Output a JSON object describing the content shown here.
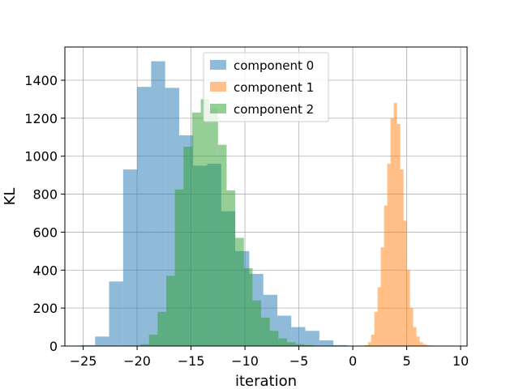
{
  "chart_data": {
    "type": "bar",
    "title": "",
    "xlabel": "iteration",
    "ylabel": "KL",
    "xlim": [
      -26.7,
      10.6
    ],
    "ylim": [
      0,
      1575
    ],
    "xticks": [
      -25,
      -20,
      -15,
      -10,
      -5,
      0,
      5,
      10
    ],
    "xtick_labels": [
      "−25",
      "−20",
      "−15",
      "−10",
      "−5",
      "0",
      "5",
      "10"
    ],
    "yticks": [
      0,
      200,
      400,
      600,
      800,
      1000,
      1200,
      1400
    ],
    "ytick_labels": [
      "0",
      "200",
      "400",
      "600",
      "800",
      "1000",
      "1200",
      "1400"
    ],
    "grid": true,
    "legend_position": "top-center",
    "bar_opacity": 0.5,
    "series": [
      {
        "name": "component 0",
        "color": "#1f77b4",
        "bin_edges": [
          -25.2,
          -23.9,
          -22.6,
          -21.3,
          -20.0,
          -18.7,
          -17.4,
          -16.1,
          -14.8,
          -13.5,
          -12.2,
          -10.9,
          -9.6,
          -8.3,
          -7.0,
          -5.7,
          -4.4,
          -3.1,
          -1.8,
          -0.5
        ],
        "counts": [
          5,
          50,
          340,
          930,
          1365,
          1500,
          1360,
          1110,
          950,
          960,
          710,
          500,
          380,
          270,
          160,
          100,
          80,
          30,
          5
        ]
      },
      {
        "name": "component 1",
        "color": "#ff7f0e",
        "bin_edges": [
          1.1,
          1.4,
          1.7,
          2.0,
          2.3,
          2.6,
          2.9,
          3.2,
          3.5,
          3.8,
          4.1,
          4.4,
          4.7,
          5.0,
          5.3,
          5.6,
          5.9,
          6.2,
          6.5,
          6.8,
          7.1,
          7.4,
          7.7,
          8.0
        ],
        "counts": [
          5,
          20,
          60,
          180,
          310,
          520,
          740,
          960,
          1200,
          1280,
          1170,
          930,
          660,
          400,
          200,
          100,
          50,
          20,
          10,
          5,
          3,
          2,
          1
        ]
      },
      {
        "name": "component 2",
        "color": "#2ca02c",
        "bin_edges": [
          -19.7,
          -18.9,
          -18.1,
          -17.3,
          -16.5,
          -15.7,
          -14.9,
          -14.1,
          -13.3,
          -12.5,
          -11.7,
          -10.9,
          -10.1,
          -9.3,
          -8.5,
          -7.7,
          -6.9,
          -6.1,
          -5.3,
          -4.5,
          -3.7,
          -2.9
        ],
        "counts": [
          10,
          60,
          180,
          370,
          825,
          1050,
          1230,
          1300,
          1250,
          1060,
          820,
          570,
          410,
          240,
          150,
          80,
          40,
          20,
          10,
          5,
          2
        ]
      }
    ]
  }
}
